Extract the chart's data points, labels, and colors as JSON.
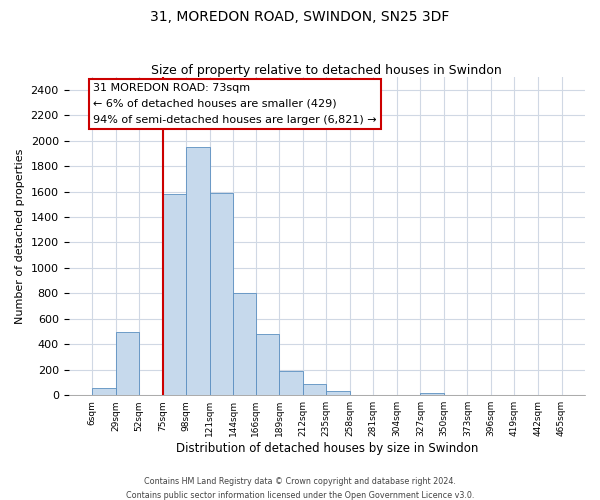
{
  "title": "31, MOREDON ROAD, SWINDON, SN25 3DF",
  "subtitle": "Size of property relative to detached houses in Swindon",
  "xlabel": "Distribution of detached houses by size in Swindon",
  "ylabel": "Number of detached properties",
  "bin_edges": [
    6,
    29,
    52,
    75,
    98,
    121,
    144,
    166,
    189,
    212,
    235,
    258,
    281,
    304,
    327,
    350,
    373,
    396,
    419,
    442,
    465
  ],
  "bar_heights": [
    55,
    500,
    0,
    1580,
    1950,
    1590,
    800,
    480,
    190,
    90,
    30,
    0,
    0,
    0,
    20,
    0,
    0,
    0,
    0,
    0
  ],
  "bar_color": "#c6d9ec",
  "bar_edgecolor": "#5a8fc0",
  "vline_x": 75,
  "vline_color": "#cc0000",
  "annotation_title": "31 MOREDON ROAD: 73sqm",
  "annotation_line1": "← 6% of detached houses are smaller (429)",
  "annotation_line2": "94% of semi-detached houses are larger (6,821) →",
  "annotation_box_edgecolor": "#cc0000",
  "annotation_box_facecolor": "#ffffff",
  "ylim": [
    0,
    2500
  ],
  "yticks": [
    0,
    200,
    400,
    600,
    800,
    1000,
    1200,
    1400,
    1600,
    1800,
    2000,
    2200,
    2400
  ],
  "tick_labels": [
    "6sqm",
    "29sqm",
    "52sqm",
    "75sqm",
    "98sqm",
    "121sqm",
    "144sqm",
    "166sqm",
    "189sqm",
    "212sqm",
    "235sqm",
    "258sqm",
    "281sqm",
    "304sqm",
    "327sqm",
    "350sqm",
    "373sqm",
    "396sqm",
    "419sqm",
    "442sqm",
    "465sqm"
  ],
  "footer_line1": "Contains HM Land Registry data © Crown copyright and database right 2024.",
  "footer_line2": "Contains public sector information licensed under the Open Government Licence v3.0.",
  "background_color": "#ffffff",
  "plot_background_color": "#ffffff",
  "grid_color": "#d0d8e4"
}
